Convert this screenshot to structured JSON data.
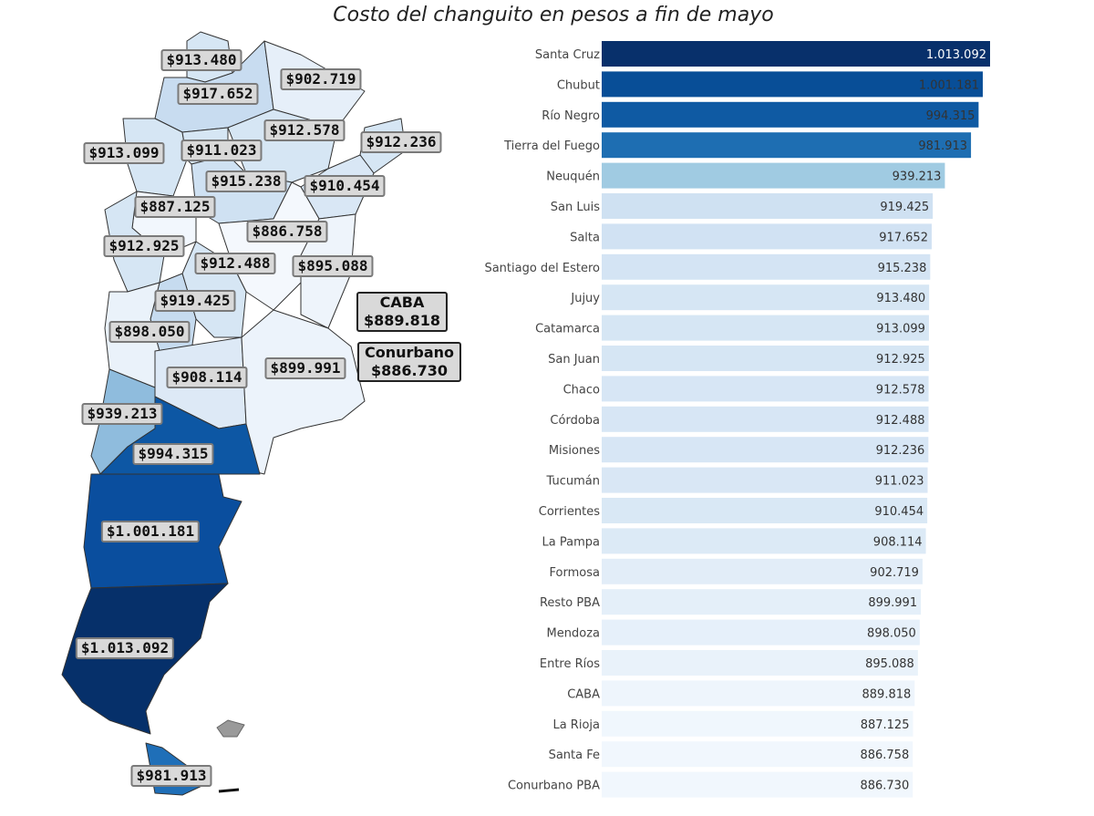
{
  "title": "Costo del changuito en pesos a fin de mayo",
  "colors": {
    "scale": [
      "#f7fbff",
      "#deebf7",
      "#c6dbef",
      "#9ecae1",
      "#2171b5",
      "#08519c",
      "#08306b"
    ]
  },
  "map_labels": [
    {
      "id": "jujuy",
      "text": "$913.480"
    },
    {
      "id": "formosa",
      "text": "$902.719"
    },
    {
      "id": "salta",
      "text": "$917.652"
    },
    {
      "id": "chaco",
      "text": "$912.578"
    },
    {
      "id": "misiones",
      "text": "$912.236"
    },
    {
      "id": "catamarca",
      "text": "$913.099"
    },
    {
      "id": "tucuman",
      "text": "$911.023"
    },
    {
      "id": "santiago",
      "text": "$915.238"
    },
    {
      "id": "corrientes",
      "text": "$910.454"
    },
    {
      "id": "larioja",
      "text": "$887.125"
    },
    {
      "id": "santafe",
      "text": "$886.758"
    },
    {
      "id": "sanjuan",
      "text": "$912.925"
    },
    {
      "id": "cordoba",
      "text": "$912.488"
    },
    {
      "id": "entrerios",
      "text": "$895.088"
    },
    {
      "id": "sanluis",
      "text": "$919.425"
    },
    {
      "id": "mendoza",
      "text": "$898.050"
    },
    {
      "id": "lapampa",
      "text": "$908.114"
    },
    {
      "id": "restopba",
      "text": "$899.991"
    },
    {
      "id": "neuquen",
      "text": "$939.213"
    },
    {
      "id": "rionegro",
      "text": "$994.315"
    },
    {
      "id": "chubut",
      "text": "$1.001.181"
    },
    {
      "id": "santacruz",
      "text": "$1.013.092"
    },
    {
      "id": "tdf",
      "text": "$981.913"
    }
  ],
  "caba_label": {
    "name": "CABA",
    "value": "$889.818"
  },
  "conurbano_label": {
    "name": "Conurbano",
    "value": "$886.730"
  },
  "chart_data": {
    "type": "bar",
    "orientation": "horizontal",
    "title": "Costo del changuito en pesos a fin de mayo",
    "categories": [
      "Santa Cruz",
      "Chubut",
      "Río Negro",
      "Tierra del Fuego",
      "Neuquén",
      "San Luis",
      "Salta",
      "Santiago del Estero",
      "Jujuy",
      "Catamarca",
      "San Juan",
      "Chaco",
      "Córdoba",
      "Misiones",
      "Tucumán",
      "Corrientes",
      "La Pampa",
      "Formosa",
      "Resto PBA",
      "Mendoza",
      "Entre Ríos",
      "CABA",
      "La Rioja",
      "Santa Fe",
      "Conurbano PBA"
    ],
    "values": [
      1013092,
      1001181,
      994315,
      981913,
      939213,
      919425,
      917652,
      915238,
      913480,
      913099,
      912925,
      912578,
      912488,
      912236,
      911023,
      910454,
      908114,
      902719,
      899991,
      898050,
      895088,
      889818,
      887125,
      886758,
      886730
    ],
    "value_labels": [
      "1.013.092",
      "1.001.181",
      "994.315",
      "981.913",
      "939.213",
      "919.425",
      "917.652",
      "915.238",
      "913.480",
      "913.099",
      "912.925",
      "912.578",
      "912.488",
      "912.236",
      "911.023",
      "910.454",
      "908.114",
      "902.719",
      "899.991",
      "898.050",
      "895.088",
      "889.818",
      "887.125",
      "886.758",
      "886.730"
    ],
    "xlim": [
      0,
      1013092
    ],
    "grid": false,
    "legend": "none"
  }
}
